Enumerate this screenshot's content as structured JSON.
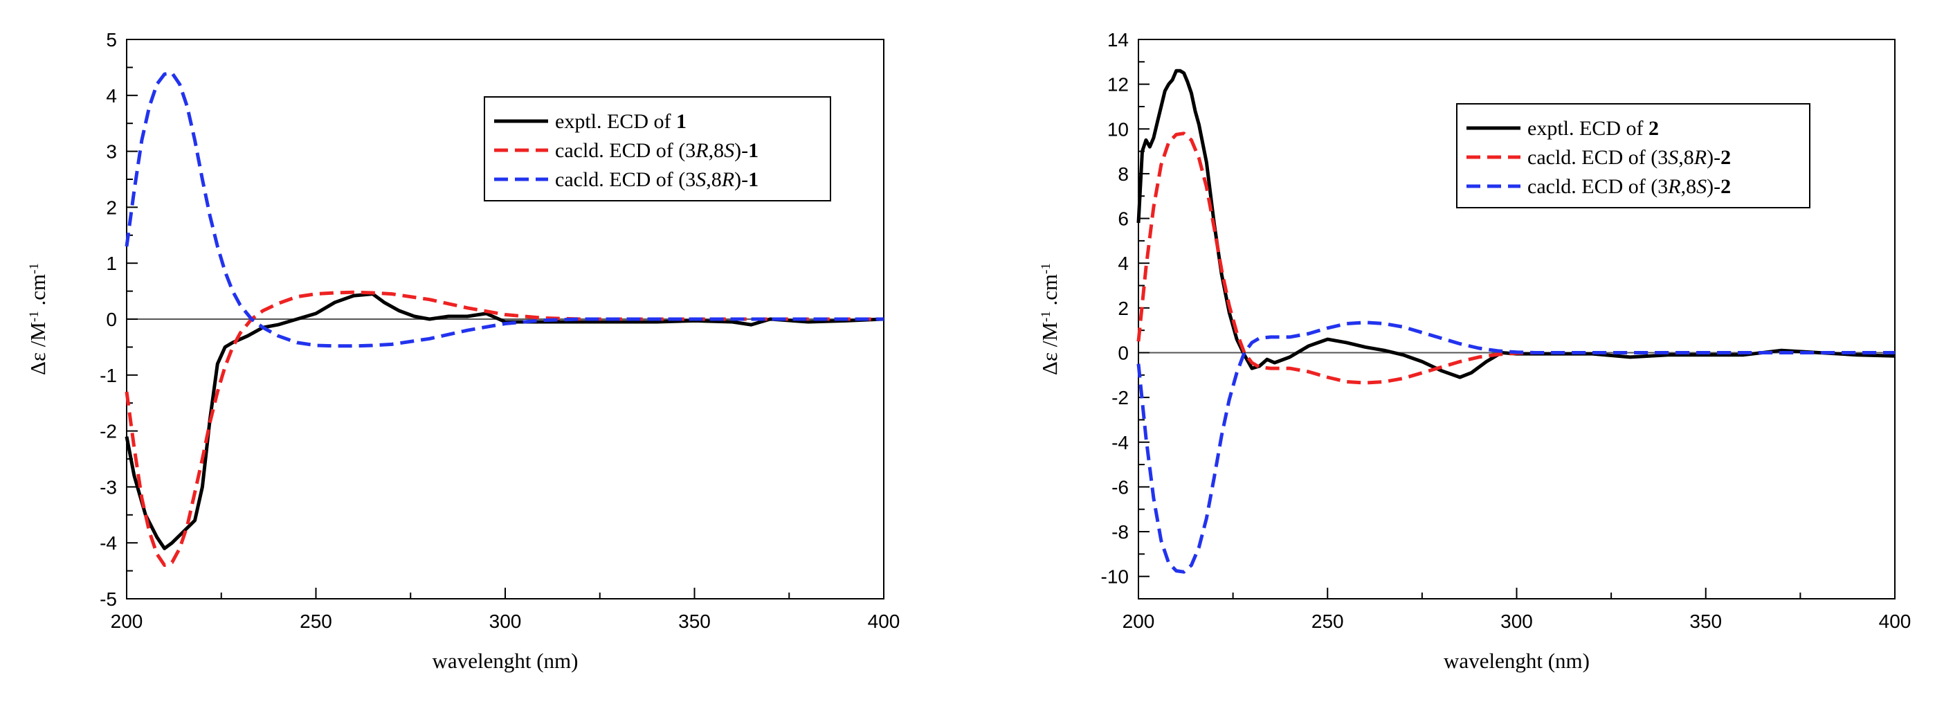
{
  "chart_data": [
    {
      "type": "line",
      "xlabel": "wavelenght (nm)",
      "ylabel": {
        "main": "Δε /M",
        "sup1": "-1",
        "mid": " .cm",
        "sup2": "-1"
      },
      "xlim": [
        200,
        400
      ],
      "ylim": [
        -5,
        5
      ],
      "xticks": [
        200,
        250,
        300,
        350,
        400
      ],
      "yticks": [
        -5,
        -4,
        -3,
        -2,
        -1,
        0,
        1,
        2,
        3,
        4,
        5
      ],
      "zero_line": true,
      "legend_position": "top-right",
      "series": [
        {
          "name": "exptl. ECD of 1",
          "legend": [
            {
              "t": "exptl. ECD of "
            },
            {
              "t": "1",
              "b": true
            }
          ],
          "color": "#000000",
          "dash": "solid",
          "x": [
            200,
            202,
            205,
            208,
            210,
            212,
            215,
            218,
            220,
            222,
            224,
            226,
            228,
            232,
            236,
            240,
            245,
            250,
            255,
            260,
            265,
            268,
            272,
            276,
            280,
            285,
            290,
            295,
            300,
            310,
            320,
            330,
            340,
            350,
            360,
            365,
            370,
            380,
            390,
            400
          ],
          "y": [
            -2.1,
            -2.8,
            -3.5,
            -3.9,
            -4.1,
            -4.0,
            -3.8,
            -3.6,
            -3.0,
            -1.8,
            -0.8,
            -0.5,
            -0.42,
            -0.3,
            -0.15,
            -0.1,
            0.0,
            0.1,
            0.3,
            0.42,
            0.45,
            0.3,
            0.15,
            0.05,
            0.0,
            0.05,
            0.05,
            0.1,
            -0.05,
            -0.05,
            -0.05,
            -0.05,
            -0.05,
            -0.03,
            -0.05,
            -0.1,
            0.0,
            -0.05,
            -0.03,
            0.0
          ]
        },
        {
          "name": "cacld. ECD of (3R,8S)-1",
          "legend": [
            {
              "t": "cacld. ECD of (3"
            },
            {
              "t": "R",
              "i": true
            },
            {
              "t": ",8"
            },
            {
              "t": "S",
              "i": true
            },
            {
              "t": ")-"
            },
            {
              "t": "1",
              "b": true
            }
          ],
          "color": "#ee2222",
          "dash": "dashed",
          "x": [
            200,
            202,
            204,
            206,
            208,
            210,
            212,
            214,
            216,
            218,
            220,
            222,
            224,
            226,
            228,
            230,
            233,
            236,
            240,
            245,
            250,
            255,
            260,
            265,
            270,
            280,
            290,
            300,
            310,
            320,
            330,
            340,
            350,
            400
          ],
          "y": [
            -1.3,
            -2.3,
            -3.2,
            -3.8,
            -4.2,
            -4.4,
            -4.35,
            -4.1,
            -3.7,
            -3.1,
            -2.5,
            -1.85,
            -1.3,
            -0.85,
            -0.5,
            -0.25,
            0.0,
            0.15,
            0.28,
            0.4,
            0.45,
            0.47,
            0.48,
            0.47,
            0.45,
            0.35,
            0.2,
            0.08,
            0.02,
            0.0,
            0.0,
            0.0,
            0.0,
            0.0
          ]
        },
        {
          "name": "cacld. ECD of (3S,8R)-1",
          "legend": [
            {
              "t": "cacld. ECD of (3"
            },
            {
              "t": "S",
              "i": true
            },
            {
              "t": ",8"
            },
            {
              "t": "R",
              "i": true
            },
            {
              "t": ")-"
            },
            {
              "t": "1",
              "b": true
            }
          ],
          "color": "#2233ee",
          "dash": "dashed",
          "x": [
            200,
            202,
            204,
            206,
            208,
            210,
            212,
            214,
            216,
            218,
            220,
            222,
            224,
            226,
            228,
            230,
            233,
            236,
            240,
            245,
            250,
            255,
            260,
            265,
            270,
            280,
            290,
            300,
            310,
            320,
            330,
            340,
            350,
            400
          ],
          "y": [
            1.3,
            2.3,
            3.2,
            3.8,
            4.2,
            4.38,
            4.4,
            4.2,
            3.8,
            3.2,
            2.5,
            1.85,
            1.3,
            0.85,
            0.5,
            0.25,
            0.0,
            -0.15,
            -0.3,
            -0.42,
            -0.47,
            -0.48,
            -0.48,
            -0.47,
            -0.45,
            -0.35,
            -0.2,
            -0.08,
            -0.02,
            0.0,
            0.0,
            0.0,
            0.0,
            0.0
          ]
        }
      ]
    },
    {
      "type": "line",
      "xlabel": "wavelenght (nm)",
      "ylabel": {
        "main": "Δε /M",
        "sup1": "-1",
        "mid": " .cm",
        "sup2": "-1"
      },
      "xlim": [
        200,
        400
      ],
      "ylim": [
        -11,
        14
      ],
      "xticks": [
        200,
        250,
        300,
        350,
        400
      ],
      "yticks": [
        -10,
        -8,
        -6,
        -4,
        -2,
        0,
        2,
        4,
        6,
        8,
        10,
        12,
        14
      ],
      "zero_line": true,
      "legend_position": "top-right",
      "series": [
        {
          "name": "exptl. ECD of 2",
          "legend": [
            {
              "t": "exptl. ECD of "
            },
            {
              "t": "2",
              "b": true
            }
          ],
          "color": "#000000",
          "dash": "solid",
          "x": [
            200,
            201,
            202,
            203,
            204,
            205,
            206,
            207,
            208,
            209,
            210,
            211,
            212,
            213,
            214,
            215,
            216,
            218,
            220,
            222,
            224,
            226,
            228,
            230,
            232,
            234,
            236,
            240,
            245,
            250,
            255,
            260,
            265,
            270,
            275,
            280,
            285,
            288,
            292,
            296,
            300,
            310,
            320,
            330,
            340,
            350,
            360,
            365,
            370,
            380,
            390,
            400
          ],
          "y": [
            5.8,
            9.0,
            9.5,
            9.2,
            9.6,
            10.3,
            11.0,
            11.7,
            12.0,
            12.2,
            12.6,
            12.6,
            12.5,
            12.1,
            11.6,
            10.8,
            10.2,
            8.5,
            5.8,
            3.5,
            1.8,
            0.6,
            -0.1,
            -0.7,
            -0.6,
            -0.3,
            -0.45,
            -0.2,
            0.3,
            0.6,
            0.45,
            0.25,
            0.1,
            -0.1,
            -0.4,
            -0.8,
            -1.1,
            -0.9,
            -0.4,
            0.0,
            -0.05,
            -0.05,
            -0.05,
            -0.2,
            -0.1,
            -0.1,
            -0.1,
            0.0,
            0.1,
            0.0,
            -0.1,
            -0.15
          ]
        },
        {
          "name": "cacld. ECD of (3S,8R)-2",
          "legend": [
            {
              "t": "cacld. ECD of (3"
            },
            {
              "t": "S",
              "i": true
            },
            {
              "t": ",8"
            },
            {
              "t": "R",
              "i": true
            },
            {
              "t": ")-"
            },
            {
              "t": "2",
              "b": true
            }
          ],
          "color": "#ee2222",
          "dash": "dashed",
          "x": [
            200,
            202,
            204,
            206,
            208,
            210,
            212,
            214,
            216,
            218,
            220,
            222,
            224,
            226,
            228,
            230,
            232,
            235,
            240,
            245,
            250,
            255,
            260,
            265,
            270,
            275,
            280,
            285,
            290,
            295,
            300,
            305,
            310,
            320,
            330,
            340,
            350,
            400
          ],
          "y": [
            0.5,
            3.8,
            6.5,
            8.4,
            9.4,
            9.75,
            9.8,
            9.5,
            8.7,
            7.4,
            5.6,
            3.7,
            2.1,
            0.9,
            0.0,
            -0.45,
            -0.65,
            -0.7,
            -0.7,
            -0.85,
            -1.1,
            -1.3,
            -1.35,
            -1.3,
            -1.15,
            -0.9,
            -0.65,
            -0.4,
            -0.2,
            -0.08,
            -0.02,
            0.0,
            0.0,
            0.0,
            0.0,
            0.0,
            0.0,
            0.0
          ]
        },
        {
          "name": "cacld. ECD of (3R,8S)-2",
          "legend": [
            {
              "t": "cacld. ECD of (3"
            },
            {
              "t": "R",
              "i": true
            },
            {
              "t": ",8"
            },
            {
              "t": "S",
              "i": true
            },
            {
              "t": ")-"
            },
            {
              "t": "2",
              "b": true
            }
          ],
          "color": "#2233ee",
          "dash": "dashed",
          "x": [
            200,
            202,
            204,
            206,
            208,
            210,
            212,
            214,
            216,
            218,
            220,
            222,
            224,
            226,
            228,
            230,
            232,
            235,
            240,
            245,
            250,
            255,
            260,
            265,
            270,
            275,
            280,
            285,
            290,
            295,
            300,
            305,
            310,
            320,
            330,
            340,
            350,
            400
          ],
          "y": [
            -0.5,
            -3.8,
            -6.5,
            -8.4,
            -9.4,
            -9.75,
            -9.8,
            -9.5,
            -8.7,
            -7.4,
            -5.6,
            -3.7,
            -2.1,
            -0.9,
            0.0,
            0.45,
            0.65,
            0.7,
            0.7,
            0.85,
            1.1,
            1.3,
            1.35,
            1.3,
            1.15,
            0.9,
            0.65,
            0.4,
            0.2,
            0.08,
            0.02,
            0.0,
            0.0,
            0.0,
            0.0,
            0.0,
            0.0,
            0.0
          ]
        }
      ]
    }
  ]
}
